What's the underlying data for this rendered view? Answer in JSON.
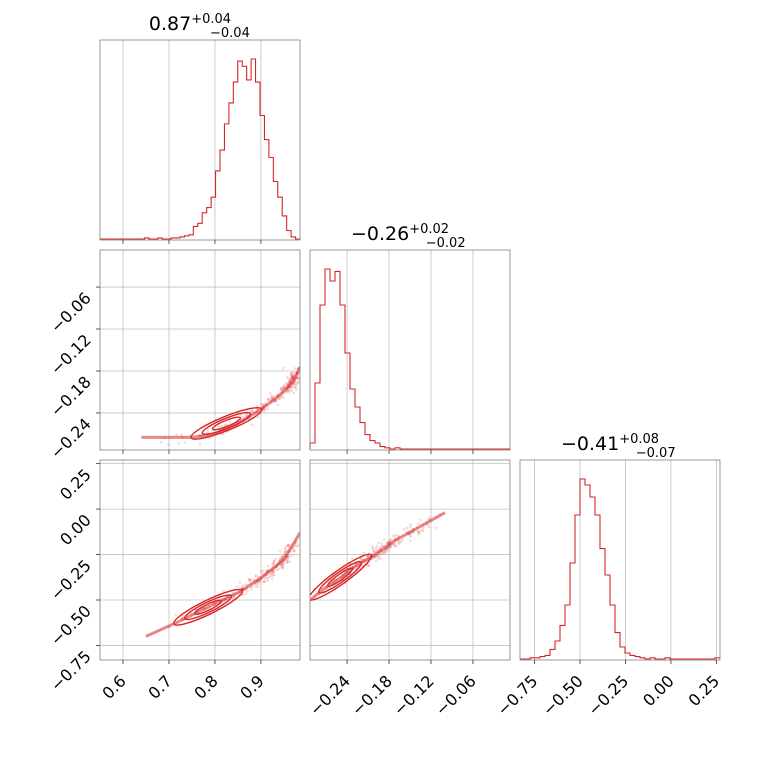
{
  "chart_data": {
    "type": "corner",
    "color": "#d62728",
    "grid": true,
    "parameters": [
      {
        "title_value": "0.87",
        "err_plus": "+0.04",
        "err_minus": "−0.04",
        "range": [
          0.55,
          0.985
        ],
        "ticks": [
          0.6,
          0.7,
          0.8,
          0.9
        ],
        "tick_labels": [
          "0.6",
          "0.7",
          "0.8",
          "0.9"
        ]
      },
      {
        "title_value": "−0.26",
        "err_plus": "+0.02",
        "err_minus": "−0.02",
        "range": [
          -0.293,
          -0.007
        ],
        "ticks": [
          -0.24,
          -0.18,
          -0.12,
          -0.06
        ],
        "tick_labels": [
          "−0.24",
          "−0.18",
          "−0.12",
          "−0.06"
        ]
      },
      {
        "title_value": "−0.41",
        "err_plus": "+0.08",
        "err_minus": "−0.07",
        "range": [
          -0.83,
          0.27
        ],
        "ticks": [
          -0.75,
          -0.5,
          -0.25,
          0.0,
          0.25
        ],
        "tick_labels": [
          "−0.75",
          "−0.50",
          "−0.25",
          "0.00",
          "0.25"
        ]
      }
    ],
    "histograms": [
      {
        "bins": [
          0.55,
          0.985
        ],
        "counts": [
          0,
          0,
          0,
          0,
          0,
          0,
          0,
          0,
          0,
          0,
          1,
          0,
          0,
          1,
          0,
          0,
          1,
          1,
          2,
          3,
          4,
          12,
          15,
          25,
          30,
          40,
          65,
          85,
          110,
          130,
          150,
          170,
          165,
          152,
          172,
          150,
          118,
          95,
          78,
          55,
          40,
          22,
          8,
          2,
          0
        ]
      },
      {
        "bins": [
          -0.293,
          -0.007
        ],
        "counts": [
          5,
          55,
          120,
          150,
          140,
          148,
          120,
          80,
          50,
          35,
          22,
          12,
          7,
          5,
          2,
          1,
          0,
          1,
          0,
          0,
          0,
          0,
          0,
          0,
          0,
          0,
          0,
          0,
          0,
          0,
          0,
          0,
          0,
          0,
          0,
          0,
          0,
          0,
          0,
          0
        ]
      },
      {
        "bins": [
          -0.83,
          0.27
        ],
        "counts": [
          0,
          0,
          1,
          1,
          2,
          3,
          8,
          15,
          28,
          45,
          80,
          120,
          150,
          145,
          135,
          120,
          92,
          70,
          45,
          22,
          10,
          5,
          3,
          2,
          1,
          0,
          1,
          0,
          0,
          1,
          0,
          0,
          0,
          0,
          0,
          0,
          0,
          0,
          0,
          1
        ]
      }
    ],
    "trend_2d": {
      "p2_vs_p1": [
        [
          0.64,
          -0.275
        ],
        [
          0.75,
          -0.275
        ],
        [
          0.8,
          -0.27
        ],
        [
          0.85,
          -0.255
        ],
        [
          0.9,
          -0.235
        ],
        [
          0.94,
          -0.215
        ],
        [
          0.97,
          -0.195
        ],
        [
          0.985,
          -0.175
        ]
      ],
      "p3_vs_p1": [
        [
          0.65,
          -0.7
        ],
        [
          0.72,
          -0.62
        ],
        [
          0.8,
          -0.52
        ],
        [
          0.85,
          -0.46
        ],
        [
          0.9,
          -0.38
        ],
        [
          0.95,
          -0.28
        ],
        [
          0.985,
          -0.13
        ]
      ],
      "p3_vs_p2": [
        [
          -0.293,
          -0.5
        ],
        [
          -0.27,
          -0.43
        ],
        [
          -0.25,
          -0.38
        ],
        [
          -0.23,
          -0.32
        ],
        [
          -0.2,
          -0.25
        ],
        [
          -0.17,
          -0.17
        ],
        [
          -0.1,
          -0.02
        ]
      ]
    }
  }
}
